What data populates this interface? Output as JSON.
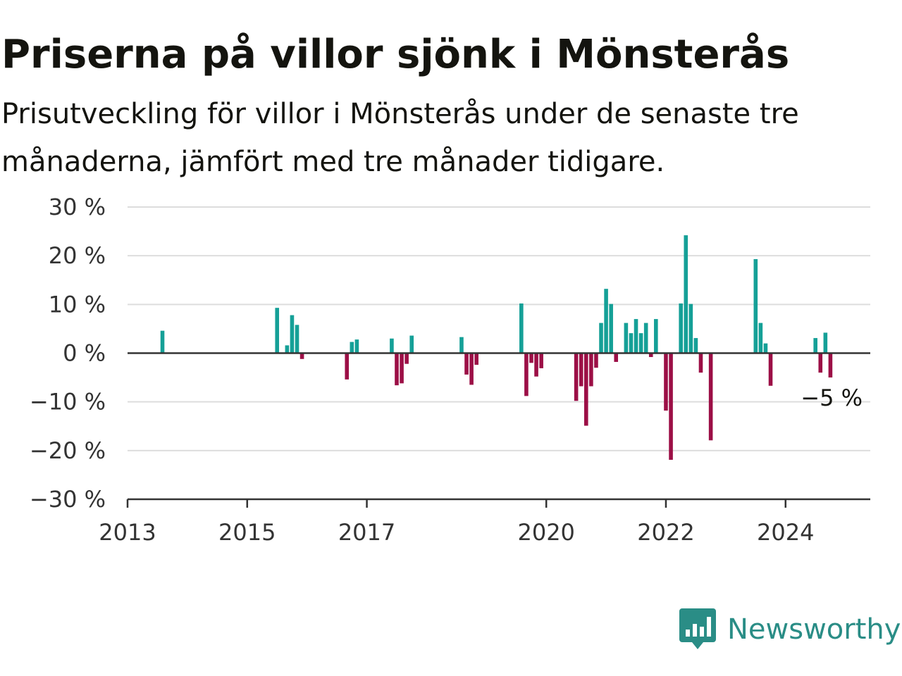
{
  "title": "Priserna på villor sjönk i Mönsterås",
  "subtitle": "Prisutveckling för villor i Mönsterås under de senaste tre månaderna, jämfört med tre månader tidigare.",
  "brand": {
    "name": "Newsworthy",
    "icon": "newsworthy-logo-icon",
    "color": "#2a8d86"
  },
  "colors": {
    "positive": "#15a097",
    "negative": "#9c0f46",
    "grid": "#dddddd",
    "axis": "#333333"
  },
  "chart_data": {
    "type": "bar",
    "title": "Priserna på villor sjönk i Mönsterås",
    "subtitle": "Prisutveckling för villor i Mönsterås under de senaste tre månaderna, jämfört med tre månader tidigare.",
    "xlabel": "",
    "ylabel": "",
    "ylim": [
      -30,
      30
    ],
    "yticks": [
      30,
      20,
      10,
      0,
      -10,
      -20,
      -30
    ],
    "ytick_labels": [
      "30 %",
      "20 %",
      "10 %",
      "0 %",
      "−10 %",
      "−20 %",
      "−30 %"
    ],
    "xticks": [
      2013,
      2015,
      2017,
      2020,
      2022,
      2024
    ],
    "xtick_labels": [
      "2013",
      "2015",
      "2017",
      "2020",
      "2022",
      "2024"
    ],
    "xlim": [
      "2013-01",
      "2025-06"
    ],
    "grid": true,
    "end_label": "−5 %",
    "values_unit": "%",
    "x": [
      "2013-08",
      "2015-07",
      "2015-09",
      "2015-10",
      "2015-11",
      "2015-12",
      "2016-09",
      "2016-10",
      "2016-11",
      "2017-06",
      "2017-07",
      "2017-08",
      "2017-09",
      "2017-10",
      "2018-08",
      "2018-09",
      "2018-10",
      "2018-11",
      "2019-08",
      "2019-09",
      "2019-10",
      "2019-11",
      "2019-12",
      "2020-07",
      "2020-08",
      "2020-09",
      "2020-10",
      "2020-11",
      "2020-12",
      "2021-01",
      "2021-02",
      "2021-03",
      "2021-05",
      "2021-06",
      "2021-07",
      "2021-08",
      "2021-09",
      "2021-10",
      "2021-11",
      "2022-01",
      "2022-02",
      "2022-04",
      "2022-05",
      "2022-06",
      "2022-07",
      "2022-08",
      "2022-10",
      "2023-07",
      "2023-08",
      "2023-09",
      "2023-10",
      "2024-07",
      "2024-08",
      "2024-09",
      "2024-10"
    ],
    "values": [
      4.6,
      9.3,
      1.6,
      7.8,
      5.8,
      -1.2,
      -5.4,
      2.3,
      2.8,
      3.0,
      -6.6,
      -6.2,
      -2.2,
      3.6,
      3.3,
      -4.4,
      -6.5,
      -2.4,
      10.2,
      -8.8,
      -2.0,
      -4.8,
      -3.1,
      -9.8,
      -6.8,
      -14.9,
      -6.8,
      -3.0,
      6.2,
      13.2,
      10.1,
      -1.8,
      6.2,
      4.1,
      7.0,
      4.1,
      6.2,
      -0.8,
      7.0,
      -11.8,
      -21.9,
      10.2,
      24.2,
      10.1,
      3.1,
      -4.0,
      -17.9,
      19.3,
      6.2,
      2.0,
      -6.7,
      3.1,
      -4.0,
      4.2,
      -5.0
    ]
  }
}
